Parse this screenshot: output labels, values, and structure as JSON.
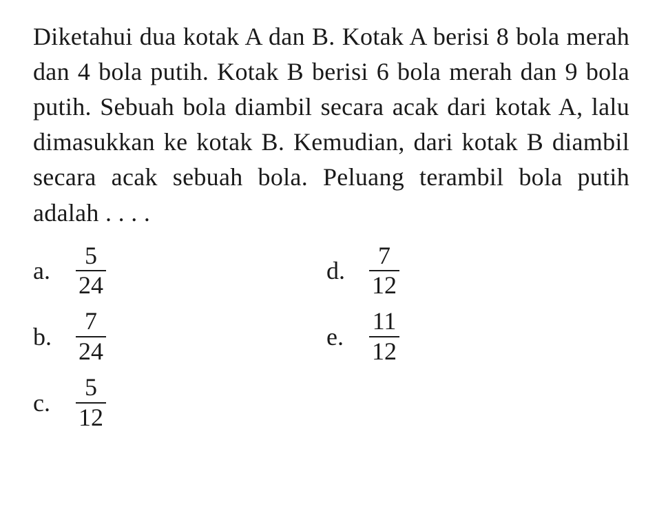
{
  "question": {
    "text": "Diketahui dua kotak A dan B. Kotak A berisi 8 bola merah dan 4 bola putih. Kotak B berisi 6 bola merah dan 9 bola putih. Sebuah bola diambil secara acak dari kotak A, lalu dimasukkan ke kotak B. Kemudian, dari kotak B diambil secara acak sebuah bola. Peluang terambil bola putih adalah . . . ."
  },
  "options": {
    "a": {
      "label": "a.",
      "num": "5",
      "den": "24"
    },
    "b": {
      "label": "b.",
      "num": "7",
      "den": "24"
    },
    "c": {
      "label": "c.",
      "num": "5",
      "den": "12"
    },
    "d": {
      "label": "d.",
      "num": "7",
      "den": "12"
    },
    "e": {
      "label": "e.",
      "num": "11",
      "den": "12"
    }
  },
  "style": {
    "font_family": "Times New Roman",
    "font_size_pt": 28,
    "text_color": "#1a1a1a",
    "background_color": "#ffffff",
    "fraction_bar_color": "#1a1a1a",
    "fraction_bar_width": 2.5
  }
}
